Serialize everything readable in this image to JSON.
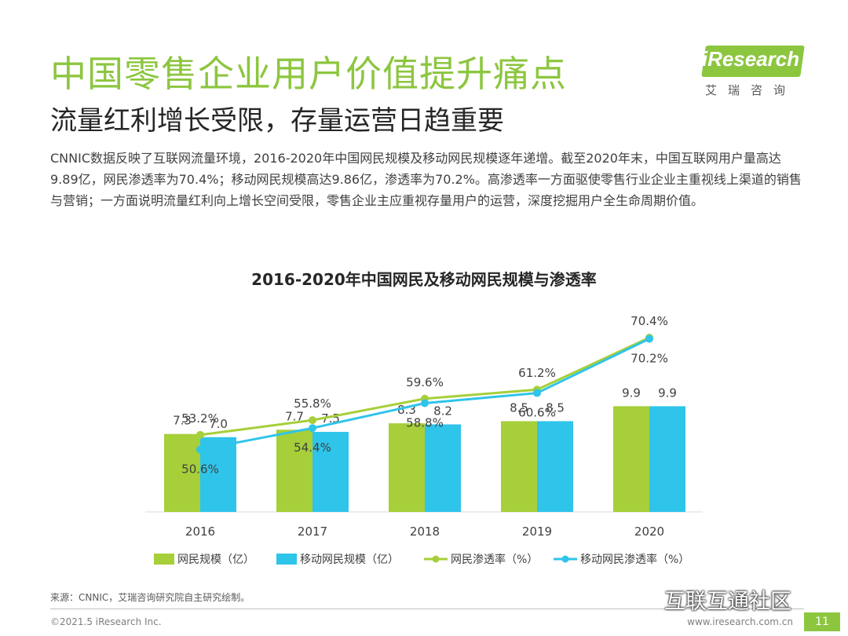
{
  "header": {
    "title": "中国零售企业用户价值提升痛点",
    "subtitle": "流量红利增长受限，存量运营日趋重要"
  },
  "logo": {
    "text": "iResearch",
    "subtext": "艾瑞咨询"
  },
  "description": "CNNIC数据反映了互联网流量环境，2016-2020年中国网民规模及移动网民规模逐年递增。截至2020年末，中国互联网用户量高达9.89亿，网民渗透率为70.4%；移动网民规模高达9.86亿，渗透率为70.2%。高渗透率一方面驱使零售行业企业主重视线上渠道的销售与营销；一方面说明流量红利向上增长空间受限，零售企业主应重视存量用户的运营，深度挖掘用户全生命周期价值。",
  "chart_data": {
    "type": "bar",
    "title": "2016-2020年中国网民及移动网民规模与渗透率",
    "categories": [
      "2016",
      "2017",
      "2018",
      "2019",
      "2020"
    ],
    "series": [
      {
        "name": "网民规模（亿）",
        "kind": "bar",
        "color": "#a6cf39",
        "values": [
          7.3,
          7.7,
          8.3,
          8.5,
          9.9
        ],
        "labels": [
          "7.3",
          "7.7",
          "8.3",
          "8.5",
          "9.9"
        ]
      },
      {
        "name": "移动网民规模（亿）",
        "kind": "bar",
        "color": "#2fc4ea",
        "values": [
          7.0,
          7.5,
          8.2,
          8.5,
          9.9
        ],
        "labels": [
          "7.0",
          "7.5",
          "8.2",
          "8.5",
          "9.9"
        ]
      },
      {
        "name": "网民渗透率（%）",
        "kind": "line",
        "color": "#a6cf39",
        "values": [
          53.2,
          55.8,
          59.6,
          61.2,
          70.4
        ],
        "labels": [
          "53.2%",
          "55.8%",
          "59.6%",
          "61.2%",
          "70.4%"
        ]
      },
      {
        "name": "移动网民渗透率（%）",
        "kind": "line",
        "color": "#2fc4ea",
        "values": [
          50.6,
          54.4,
          58.8,
          60.6,
          70.2
        ],
        "labels": [
          "50.6%",
          "54.4%",
          "58.8%",
          "60.6%",
          "70.2%"
        ]
      }
    ],
    "bar_axis": {
      "ylim": [
        0,
        12
      ]
    },
    "line_axis": {
      "ylim": [
        0,
        80
      ]
    },
    "legend": "bottom"
  },
  "footer": {
    "source": "来源：CNNIC，艾瑞咨询研究院自主研究绘制。",
    "copyright": "©2021.5 iResearch Inc.",
    "website": "www.iresearch.com.cn",
    "page": "11",
    "watermark": "互联互通社区"
  }
}
